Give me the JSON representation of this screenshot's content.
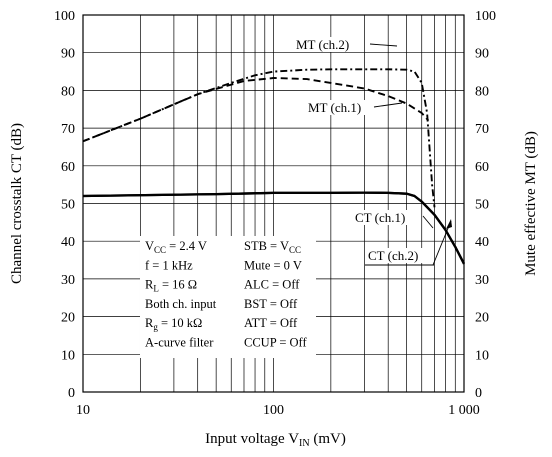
{
  "chart_data": {
    "type": "line",
    "xlabel": "Input voltage  V_IN  (mV)",
    "xlabel_parts": {
      "main": "Input voltage  V",
      "sub": "IN",
      "unit": "  (mV)"
    },
    "ylabel_left": "Channel crosstalk  CT  (dB)",
    "ylabel_right": "Mute effective  MT  (dB)",
    "x_scale": "log",
    "xlim": [
      10,
      1000
    ],
    "ylim": [
      0,
      100
    ],
    "x_ticks": [
      10,
      100,
      1000
    ],
    "x_tick_labels": [
      "10",
      "100",
      "1 000"
    ],
    "y_ticks": [
      0,
      10,
      20,
      30,
      40,
      50,
      60,
      70,
      80,
      90,
      100
    ],
    "y_tick_labels": [
      "0",
      "10",
      "20",
      "30",
      "40",
      "50",
      "60",
      "70",
      "80",
      "90",
      "100"
    ],
    "grid": true,
    "series": [
      {
        "name": "MT (ch.1)",
        "style": "dashed",
        "color": "#000000",
        "x": [
          10,
          20,
          40,
          70,
          100,
          150,
          200,
          300,
          400,
          500,
          600,
          650
        ],
        "y": [
          66.5,
          72.5,
          79,
          82.5,
          83.3,
          83,
          82,
          80.5,
          78.5,
          76.5,
          74,
          72
        ]
      },
      {
        "name": "MT (ch.2)",
        "style": "dashdot",
        "color": "#000000",
        "x": [
          10,
          20,
          40,
          60,
          80,
          100,
          150,
          200,
          300,
          400,
          500,
          550,
          600,
          640,
          680,
          700
        ],
        "y": [
          66.5,
          72.5,
          79,
          82,
          84,
          85,
          85.5,
          85.6,
          85.6,
          85.6,
          85.5,
          85,
          82,
          74,
          55,
          49
        ]
      },
      {
        "name": "CT (ch.1)",
        "style": "solid",
        "color": "#000000",
        "x": [
          10,
          50,
          100,
          200,
          300,
          400,
          500,
          550,
          600,
          700,
          800,
          900,
          1000
        ],
        "y": [
          52,
          52.5,
          52.8,
          52.8,
          52.9,
          52.8,
          52.6,
          52,
          50.5,
          47,
          43,
          38.5,
          34
        ]
      },
      {
        "name": "CT (ch.2)",
        "style": "solid",
        "color": "#000000",
        "x": [
          10,
          50,
          100,
          200,
          300,
          400,
          500,
          550,
          600,
          700,
          800,
          900,
          1000
        ],
        "y": [
          52,
          52.5,
          52.8,
          52.8,
          52.9,
          52.8,
          52.6,
          52,
          50.5,
          47,
          43,
          38.5,
          34
        ]
      }
    ],
    "annotations": [
      {
        "text": "MT (ch.2)",
        "series": "MT (ch.2)"
      },
      {
        "text": "MT (ch.1)",
        "series": "MT (ch.1)"
      },
      {
        "text": "CT (ch.1)",
        "series": "CT (ch.1)"
      },
      {
        "text": "CT (ch.2)",
        "series": "CT (ch.2)"
      }
    ],
    "conditions": [
      {
        "left": {
          "t": "V",
          "s": "CC",
          "r": " = 2.4 V"
        },
        "right": {
          "t": "STB = V",
          "s": "CC",
          "r": ""
        }
      },
      {
        "left": {
          "t": "f = 1 kHz",
          "s": "",
          "r": ""
        },
        "right": {
          "t": "Mute = 0 V",
          "s": "",
          "r": ""
        }
      },
      {
        "left": {
          "t": "R",
          "s": "L",
          "r": " = 16 Ω"
        },
        "right": {
          "t": "ALC = Off",
          "s": "",
          "r": ""
        }
      },
      {
        "left": {
          "t": "Both ch. input",
          "s": "",
          "r": ""
        },
        "right": {
          "t": "BST = Off",
          "s": "",
          "r": ""
        }
      },
      {
        "left": {
          "t": "R",
          "s": "g",
          "r": " = 10 kΩ"
        },
        "right": {
          "t": "ATT = Off",
          "s": "",
          "r": ""
        }
      },
      {
        "left": {
          "t": "A-curve filter",
          "s": "",
          "r": ""
        },
        "right": {
          "t": "CCUP = Off",
          "s": "",
          "r": ""
        }
      }
    ]
  }
}
